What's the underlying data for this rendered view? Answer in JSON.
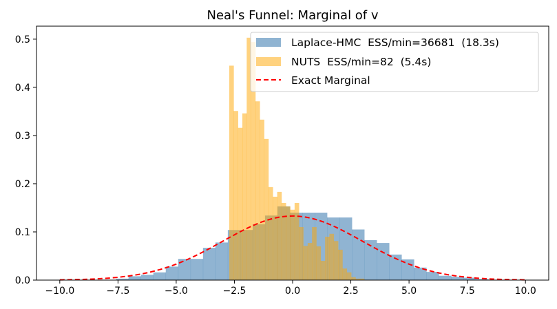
{
  "chart_data": {
    "type": "bar",
    "title": "Neal's Funnel: Marginal of v",
    "xlabel": "",
    "ylabel": "",
    "xlim": [
      -11,
      11
    ],
    "ylim": [
      0,
      0.527
    ],
    "xticks": [
      -10.0,
      -7.5,
      -5.0,
      -2.5,
      0.0,
      2.5,
      5.0,
      7.5,
      10.0
    ],
    "xtick_labels": [
      "−10.0",
      "−7.5",
      "−5.0",
      "−2.5",
      "0.0",
      "2.5",
      "5.0",
      "7.5",
      "10.0"
    ],
    "yticks": [
      0.0,
      0.1,
      0.2,
      0.3,
      0.4,
      0.5
    ],
    "ytick_labels": [
      "0.0",
      "0.1",
      "0.2",
      "0.3",
      "0.4",
      "0.5"
    ],
    "grid": false,
    "legend_placement": "top-right",
    "series": [
      {
        "name": "Laplace-HMC  ESS/min=36681  (18.3s)",
        "kind": "histogram",
        "color": "#4682b4",
        "opacity": 0.6,
        "bin_start": -7.58,
        "bin_width": 0.533,
        "values": [
          0.003,
          0.008,
          0.011,
          0.016,
          0.028,
          0.044,
          0.044,
          0.067,
          0.078,
          0.104,
          0.104,
          0.116,
          0.134,
          0.153,
          0.14,
          0.14,
          0.14,
          0.13,
          0.13,
          0.105,
          0.083,
          0.077,
          0.053,
          0.043,
          0.026,
          0.017,
          0.009,
          0.007,
          0.005,
          0.002
        ]
      },
      {
        "name": "NUTS  ESS/min=82  (5.4s)",
        "kind": "histogram",
        "color": "#ffa500",
        "opacity": 0.5,
        "bin_start": -2.72,
        "bin_width": 0.187,
        "values": [
          0.445,
          0.351,
          0.316,
          0.346,
          0.503,
          0.494,
          0.371,
          0.333,
          0.293,
          0.193,
          0.173,
          0.183,
          0.16,
          0.153,
          0.146,
          0.16,
          0.11,
          0.071,
          0.077,
          0.11,
          0.07,
          0.04,
          0.09,
          0.096,
          0.081,
          0.063,
          0.024,
          0.016,
          0.006,
          0.003,
          0.003
        ]
      },
      {
        "name": "Exact Marginal",
        "kind": "line",
        "color": "#ff0000",
        "dash": "dashed",
        "function": "normal_pdf",
        "mean": 0,
        "sd": 3,
        "x_range": [
          -10,
          10
        ]
      }
    ]
  }
}
